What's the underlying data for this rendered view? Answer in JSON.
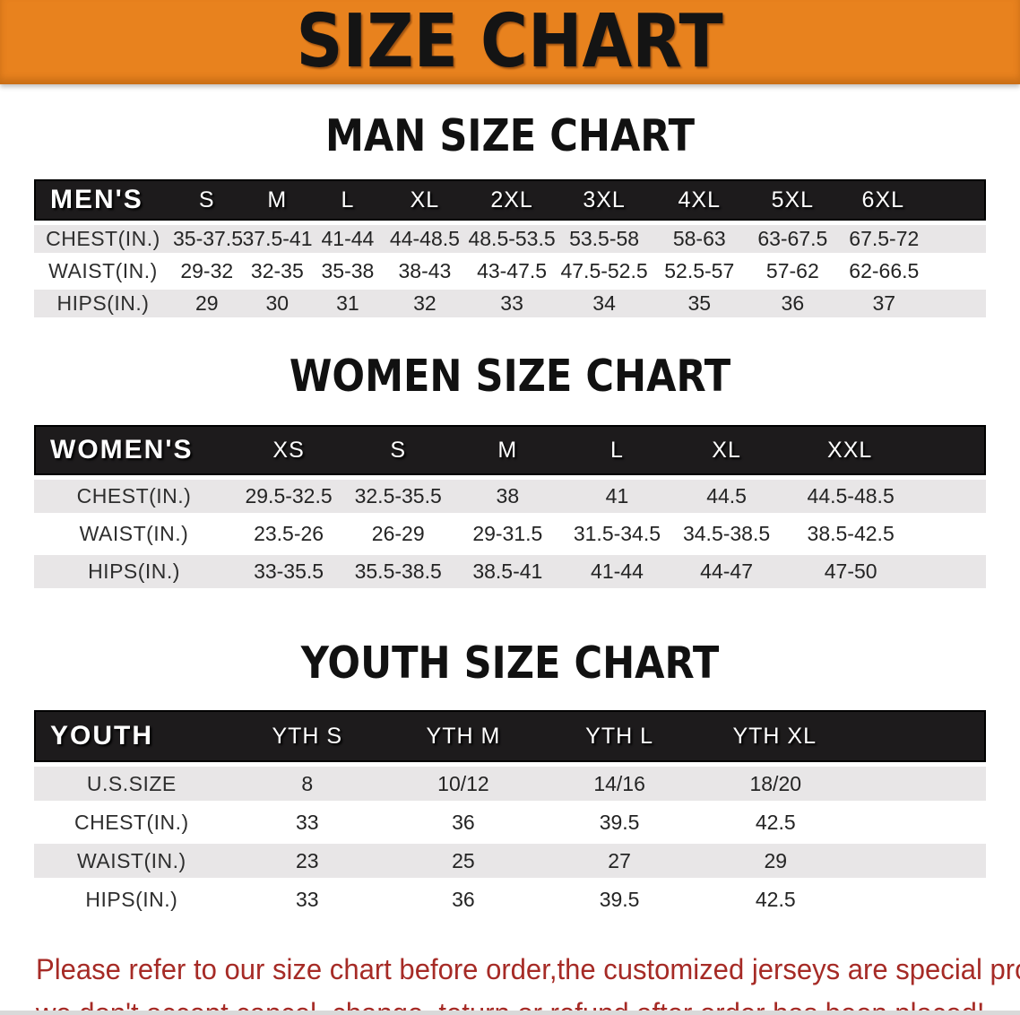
{
  "banner": {
    "title": "SIZE CHART"
  },
  "colors": {
    "banner_orange": "#E8821E",
    "header_bar_black": "#1D1B1C",
    "row_gray": "#E8E6E7",
    "note_red": "#A62B26"
  },
  "men_section": {
    "heading": "MAN SIZE CHART",
    "table": {
      "header": [
        "MEN'S",
        "S",
        "M",
        "L",
        "XL",
        "2XL",
        "3XL",
        "4XL",
        "5XL",
        "6XL"
      ],
      "rows": [
        [
          "CHEST(IN.)",
          "35-37.5",
          "37.5-41",
          "41-44",
          "44-48.5",
          "48.5-53.5",
          "53.5-58",
          "58-63",
          "63-67.5",
          "67.5-72"
        ],
        [
          "WAIST(IN.)",
          "29-32",
          "32-35",
          "35-38",
          "38-43",
          "43-47.5",
          "47.5-52.5",
          "52.5-57",
          "57-62",
          "62-66.5"
        ],
        [
          "HIPS(IN.)",
          "29",
          "30",
          "31",
          "32",
          "33",
          "34",
          "35",
          "36",
          "37"
        ]
      ]
    }
  },
  "women_section": {
    "heading": "WOMEN SIZE CHART",
    "table": {
      "header": [
        "WOMEN'S",
        "XS",
        "S",
        "M",
        "L",
        "XL",
        "XXL"
      ],
      "rows": [
        [
          "CHEST(IN.)",
          "29.5-32.5",
          "32.5-35.5",
          "38",
          "41",
          "44.5",
          "44.5-48.5"
        ],
        [
          "WAIST(IN.)",
          "23.5-26",
          "26-29",
          "29-31.5",
          "31.5-34.5",
          "34.5-38.5",
          "38.5-42.5"
        ],
        [
          "HIPS(IN.)",
          "33-35.5",
          "35.5-38.5",
          "38.5-41",
          "41-44",
          "44-47",
          "47-50"
        ]
      ]
    }
  },
  "youth_section": {
    "heading": "YOUTH SIZE CHART",
    "table": {
      "header": [
        "YOUTH",
        "YTH S",
        "YTH M",
        "YTH L",
        "YTH XL"
      ],
      "rows": [
        [
          "U.S.SIZE",
          "8",
          "10/12",
          "14/16",
          "18/20"
        ],
        [
          "CHEST(IN.)",
          "33",
          "36",
          "39.5",
          "42.5"
        ],
        [
          "WAIST(IN.)",
          "23",
          "25",
          "27",
          "29"
        ],
        [
          "HIPS(IN.)",
          "33",
          "36",
          "39.5",
          "42.5"
        ]
      ]
    }
  },
  "note": {
    "line1": "Please refer to our size chart before order,the customized jerseys are special products,",
    "line2": "we don't accept cancel, change, teturn or refund after order has been placed!"
  }
}
